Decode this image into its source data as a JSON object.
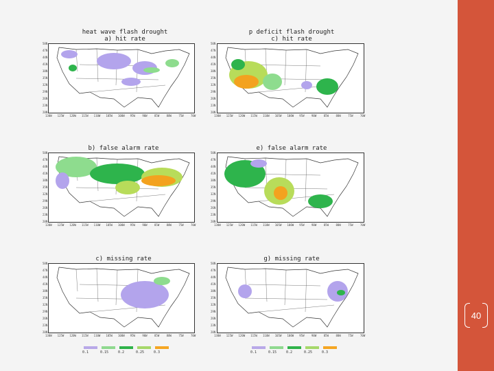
{
  "slide": {
    "page_number": "40",
    "accent_color": "#d4553a"
  },
  "panels": [
    {
      "id": "a",
      "title": "heat wave flash drought\na) hit rate"
    },
    {
      "id": "c",
      "title": "p deficit flash drought\nc) hit rate"
    },
    {
      "id": "b",
      "title": "b) false alarm rate"
    },
    {
      "id": "e",
      "title": "e) false alarm rate"
    },
    {
      "id": "cm",
      "title": "c) missing rate"
    },
    {
      "id": "g",
      "title": "g) missing rate"
    }
  ],
  "lat_ticks": [
    "50N",
    "47N",
    "44N",
    "41N",
    "38N",
    "35N",
    "32N",
    "29N",
    "26N",
    "23N",
    "20N"
  ],
  "lon_ticks": [
    "130W",
    "125W",
    "120W",
    "115W",
    "110W",
    "105W",
    "100W",
    "95W",
    "90W",
    "85W",
    "80W",
    "75W",
    "70W"
  ],
  "legend_left": {
    "labels": [
      "0.1",
      "0.15",
      "0.2",
      "0.25",
      "0.3"
    ],
    "colors": [
      "#b8a8e8",
      "#8fd98f",
      "#2fb34a",
      "#a6d86a",
      "#f5a623"
    ]
  },
  "legend_right": {
    "labels": [
      "0.1",
      "0.15",
      "0.2",
      "0.25",
      "0.3"
    ],
    "colors": [
      "#b8a8e8",
      "#8fd98f",
      "#2fb34a",
      "#a6d86a",
      "#f5a623"
    ]
  },
  "colors": {
    "purple": "#b3a4ec",
    "lightgreen": "#8edc8e",
    "green": "#2eb44c",
    "yellowgreen": "#b8dc5a",
    "orange": "#f3a21f"
  }
}
